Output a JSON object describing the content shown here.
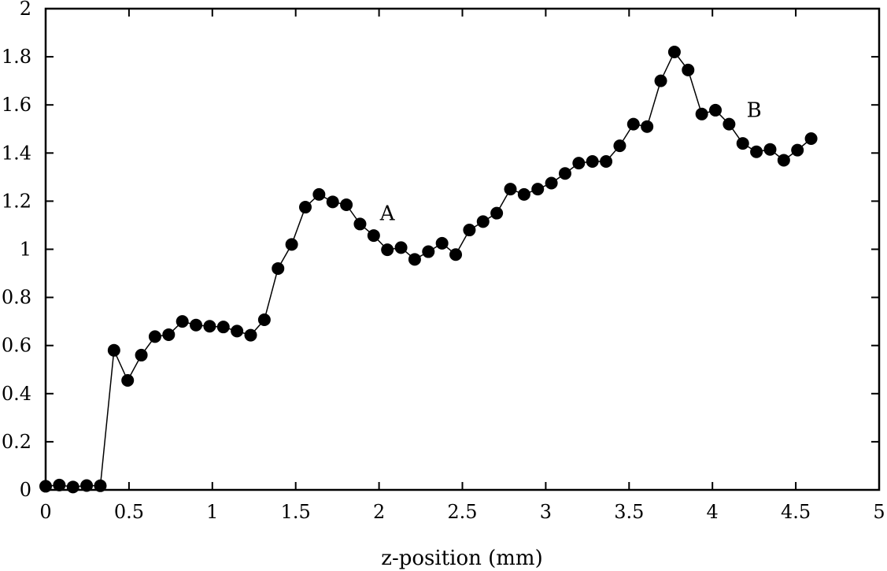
{
  "chart_data": {
    "type": "line",
    "title": "",
    "xlabel": "z-position (mm)",
    "ylabel": "",
    "xlim": [
      0,
      5
    ],
    "ylim": [
      0,
      2
    ],
    "grid": false,
    "legend": "none",
    "x_ticks": [
      "0",
      "0.5",
      "1",
      "1.5",
      "2",
      "2.5",
      "3",
      "3.5",
      "4",
      "4.5",
      "5"
    ],
    "y_ticks": [
      "0",
      "0.2",
      "0.4",
      "0.6",
      "0.8",
      "1",
      "1.2",
      "1.4",
      "1.6",
      "1.8",
      "2"
    ],
    "marker": "filled-circle",
    "line_color": "#000000",
    "marker_color": "#000000",
    "series": [
      {
        "x": [
          0.0,
          0.082,
          0.164,
          0.246,
          0.328,
          0.41,
          0.492,
          0.574,
          0.656,
          0.738,
          0.82,
          0.902,
          0.984,
          1.066,
          1.148,
          1.23,
          1.312,
          1.394,
          1.476,
          1.558,
          1.64,
          1.722,
          1.804,
          1.886,
          1.968,
          2.05,
          2.132,
          2.214,
          2.296,
          2.378,
          2.46,
          2.542,
          2.624,
          2.706,
          2.788,
          2.87,
          2.952,
          3.034,
          3.116,
          3.198,
          3.28,
          3.362,
          3.444,
          3.526,
          3.608,
          3.69,
          3.772,
          3.854,
          3.936,
          4.018,
          4.1,
          4.182,
          4.264,
          4.346,
          4.428,
          4.51,
          4.592
        ],
        "y": [
          0.015,
          0.02,
          0.012,
          0.018,
          0.017,
          0.58,
          0.455,
          0.56,
          0.637,
          0.645,
          0.7,
          0.685,
          0.68,
          0.677,
          0.66,
          0.643,
          0.707,
          0.92,
          1.02,
          1.175,
          1.228,
          1.197,
          1.185,
          1.105,
          1.057,
          0.998,
          1.007,
          0.958,
          0.99,
          1.025,
          0.978,
          1.08,
          1.115,
          1.15,
          1.25,
          1.228,
          1.25,
          1.275,
          1.315,
          1.358,
          1.365,
          1.365,
          1.43,
          1.52,
          1.51,
          1.7,
          1.82,
          1.745,
          1.562,
          1.578,
          1.52,
          1.44,
          1.405,
          1.415,
          1.37,
          1.412,
          1.46
        ]
      }
    ],
    "annotations": [
      {
        "text": "A",
        "x": 2.05,
        "y": 1.15
      },
      {
        "text": "B",
        "x": 4.25,
        "y": 1.58
      }
    ]
  }
}
